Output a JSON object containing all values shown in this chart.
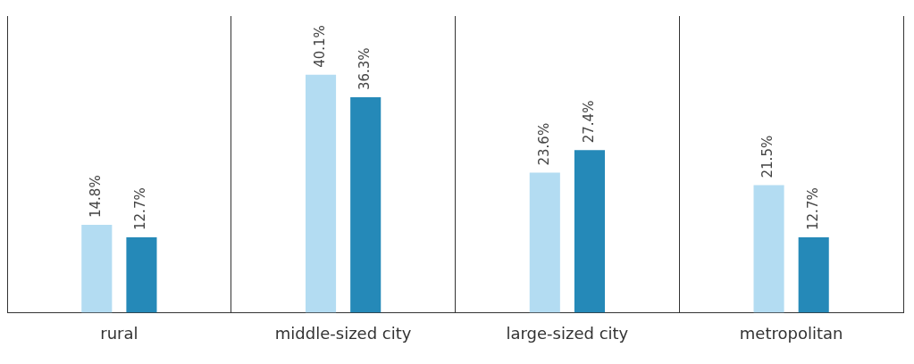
{
  "chart_data": {
    "type": "bar",
    "categories": [
      "rural",
      "middle-sized city",
      "large-sized city",
      "metropolitan"
    ],
    "series": [
      {
        "color": "#b3dcf2",
        "values": [
          14.8,
          40.1,
          23.6,
          21.5
        ],
        "value_labels": [
          "14.8%",
          "40.1%",
          "23.6%",
          "21.5%"
        ]
      },
      {
        "color": "#2589b8",
        "values": [
          12.7,
          36.3,
          27.4,
          12.7
        ],
        "value_labels": [
          "12.7%",
          "36.3%",
          "27.4%",
          "12.7%"
        ]
      }
    ],
    "grid": "x",
    "legend": false
  }
}
